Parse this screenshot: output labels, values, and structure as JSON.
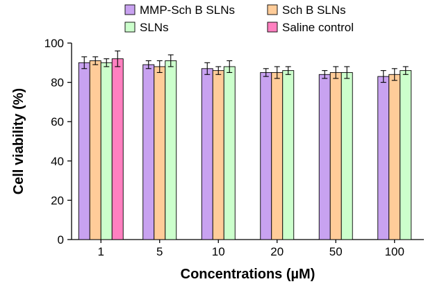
{
  "chart_data": {
    "type": "bar",
    "xlabel": "Concentrations (µM)",
    "ylabel": "Cell viability (%)",
    "ylim": [
      0,
      100
    ],
    "yticks": [
      0,
      20,
      40,
      60,
      80,
      100
    ],
    "categories": [
      "1",
      "5",
      "10",
      "20",
      "50",
      "100"
    ],
    "series": [
      {
        "name": "MMP-Sch B SLNs",
        "color": "#c8a2f0",
        "values": [
          90,
          89,
          87,
          85,
          84,
          83
        ],
        "errors": [
          3,
          2,
          3,
          2,
          2,
          3
        ]
      },
      {
        "name": "Sch B SLNs",
        "color": "#ffcc99",
        "values": [
          91,
          88,
          86,
          85,
          85,
          84
        ],
        "errors": [
          2,
          3,
          2,
          3,
          3,
          3
        ]
      },
      {
        "name": "SLNs",
        "color": "#ccffcc",
        "values": [
          90,
          91,
          88,
          86,
          85,
          86
        ],
        "errors": [
          2,
          3,
          3,
          2,
          3,
          2
        ]
      },
      {
        "name": "Saline control",
        "color": "#ff80c0",
        "values": [
          92,
          null,
          null,
          null,
          null,
          null
        ],
        "errors": [
          4,
          null,
          null,
          null,
          null,
          null
        ]
      }
    ],
    "legend": {
      "position": "top",
      "columns": 2
    },
    "grid": false
  }
}
